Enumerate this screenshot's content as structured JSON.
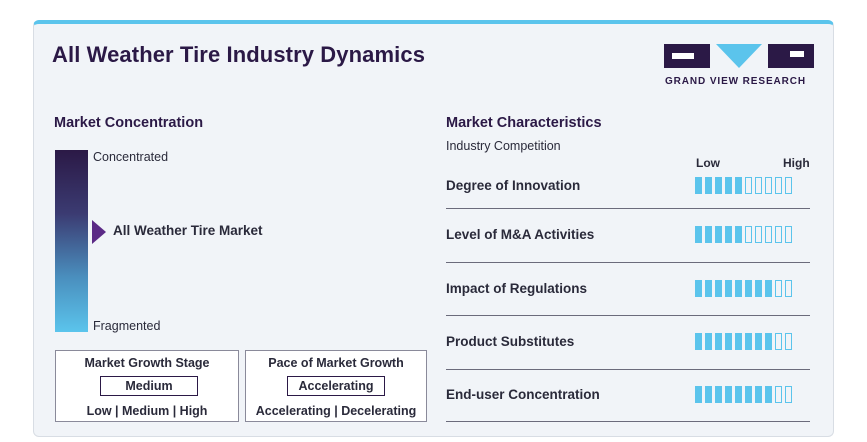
{
  "title": "All Weather Tire Industry Dynamics",
  "logo": {
    "text": "GRAND VIEW RESEARCH"
  },
  "concentration": {
    "heading": "Market Concentration",
    "top_label": "Concentrated",
    "bottom_label": "Fragmented",
    "marker_label": "All Weather Tire Market",
    "marker_level": 0.42
  },
  "growth_stage": {
    "title": "Market Growth Stage",
    "value": "Medium",
    "scale": "Low | Medium | High"
  },
  "growth_pace": {
    "title": "Pace of Market Growth",
    "value": "Accelerating",
    "scale": "Accelerating | Decelerating"
  },
  "characteristics": {
    "heading": "Market Characteristics",
    "subheading": "Industry Competition",
    "low_label": "Low",
    "high_label": "High",
    "total_segments": 10,
    "rows": [
      {
        "label": "Degree of Innovation",
        "level": 5
      },
      {
        "label": "Level of M&A Activities",
        "level": 5
      },
      {
        "label": "Impact of Regulations",
        "level": 8
      },
      {
        "label": "Product Substitutes",
        "level": 8
      },
      {
        "label": "End-user Concentration",
        "level": 8
      }
    ]
  },
  "colors": {
    "dark": "#2b1946",
    "accent": "#5bc4ec",
    "pointer": "#5b2a86"
  }
}
